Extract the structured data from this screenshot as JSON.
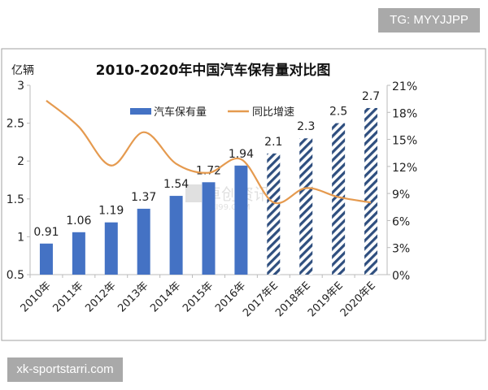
{
  "badges": {
    "top": "TG: MYYJJPP",
    "bottom": "xk-sportstarri.com"
  },
  "watermark": {
    "name": "卓创资讯",
    "site": "SCI99.COM"
  },
  "chart_data": {
    "type": "bar+line",
    "title": "2010-2020年中国汽车保有量对比图",
    "ylabel": "亿辆",
    "categories": [
      "2010年",
      "2011年",
      "2012年",
      "2013年",
      "2014年",
      "2015年",
      "2016年",
      "2017年E",
      "2018年E",
      "2019年E",
      "2020年E"
    ],
    "series": [
      {
        "name": "汽车保有量",
        "type": "bar",
        "axis": "left",
        "values": [
          0.91,
          1.06,
          1.19,
          1.37,
          1.54,
          1.72,
          1.94,
          2.1,
          2.3,
          2.5,
          2.7
        ],
        "labels": [
          "0.91",
          "1.06",
          "1.19",
          "1.37",
          "1.54",
          "1.72",
          "1.94",
          "2.1",
          "2.3",
          "2.5",
          "2.7"
        ],
        "forecast_from_index": 7,
        "color": "#4472c4",
        "forecast_hatch_color": "#2f4f7f"
      },
      {
        "name": "同比增速",
        "type": "line",
        "axis": "right",
        "smooth": true,
        "values": [
          19.3,
          16.4,
          12.1,
          15.8,
          12.3,
          11.3,
          12.8,
          8.0,
          9.6,
          8.6,
          8.0
        ],
        "color": "#e59a4f"
      }
    ],
    "ylim": [
      0.5,
      3
    ],
    "yticks": [
      "0.5",
      "1",
      "1.5",
      "2",
      "2.5",
      "3"
    ],
    "y2lim": [
      0,
      21
    ],
    "y2ticks": [
      "0%",
      "3%",
      "6%",
      "9%",
      "12%",
      "15%",
      "18%",
      "21%"
    ],
    "legend": "top-center",
    "grid": false
  }
}
